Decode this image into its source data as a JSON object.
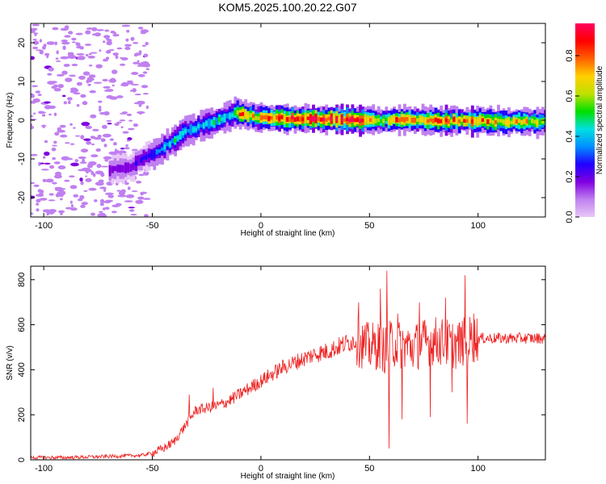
{
  "figure": {
    "title": "KOM5.2025.100.20.22.G07"
  },
  "chart_data": [
    {
      "type": "heatmap",
      "xlabel": "Height of straight line (km)",
      "ylabel": "Frequency (Hz)",
      "xlim": [
        -106,
        131
      ],
      "ylim": [
        -25,
        25
      ],
      "xticks": [
        -100,
        -50,
        0,
        50,
        100
      ],
      "yticks": [
        -20,
        -10,
        0,
        10,
        20
      ],
      "grid": false,
      "colorbar": {
        "label": "Normalized spectral amplitude",
        "range": [
          0,
          0.96
        ],
        "ticks": [
          "0.0",
          "0.2",
          "0.4",
          "0.6",
          "0.8"
        ],
        "tick_values": [
          0.0,
          0.2,
          0.4,
          0.6,
          0.8
        ],
        "colors": [
          "#e8c8f8",
          "#c080f0",
          "#8000e0",
          "#2000ff",
          "#0090ff",
          "#00e0e0",
          "#00e000",
          "#c0e000",
          "#ffd000",
          "#ff6000",
          "#ff0000",
          "#ff0060"
        ]
      },
      "ridge": {
        "x": [
          -70,
          -60,
          -55,
          -50,
          -45,
          -40,
          -35,
          -30,
          -25,
          -20,
          -15,
          -12,
          -10,
          -5,
          0,
          10,
          20,
          30,
          40,
          50,
          55,
          60,
          70,
          80,
          90,
          100,
          110,
          120,
          131
        ],
        "frequency": [
          -13,
          -12,
          -10,
          -9,
          -7,
          -5,
          -3,
          -2,
          -1,
          0,
          1,
          2,
          1.5,
          1,
          0.5,
          0.5,
          0.3,
          0.2,
          0,
          0,
          -0.2,
          0.2,
          0,
          -0.2,
          0,
          -0.2,
          -0.3,
          -0.4,
          -0.5
        ],
        "amplitude": [
          0.15,
          0.2,
          0.25,
          0.35,
          0.45,
          0.45,
          0.45,
          0.4,
          0.45,
          0.5,
          0.4,
          0.55,
          0.8,
          0.75,
          0.8,
          0.85,
          0.9,
          0.95,
          0.9,
          0.85,
          0.55,
          0.8,
          0.75,
          0.85,
          0.8,
          0.85,
          0.75,
          0.75,
          0.6
        ]
      },
      "noise_region_x": [
        -106,
        -52
      ],
      "noise_level": 0.08
    },
    {
      "type": "line",
      "xlabel": "Height of straight line (km)",
      "ylabel": "SNR (v/v)",
      "xlim": [
        -106,
        131
      ],
      "ylim": [
        0,
        860
      ],
      "xticks": [
        -100,
        -50,
        0,
        50,
        100
      ],
      "yticks": [
        0,
        200,
        400,
        600,
        800
      ],
      "grid": false,
      "color": "#ee2020",
      "series": [
        {
          "x": [
            -106,
            -90,
            -70,
            -55,
            -50,
            -45,
            -40,
            -35,
            -30,
            -25,
            -20,
            -15,
            -10,
            -5,
            0,
            5,
            10,
            15,
            20,
            25,
            30,
            35,
            40,
            44,
            45,
            50,
            55,
            58,
            60,
            65,
            70,
            75,
            80,
            85,
            90,
            95,
            100,
            110,
            120,
            131
          ],
          "y": [
            10,
            10,
            15,
            20,
            30,
            50,
            80,
            150,
            220,
            230,
            240,
            260,
            290,
            320,
            350,
            380,
            410,
            430,
            450,
            470,
            480,
            500,
            520,
            530,
            520,
            500,
            510,
            480,
            520,
            510,
            500,
            520,
            530,
            520,
            510,
            530,
            540,
            540,
            540,
            540
          ]
        }
      ],
      "extremes": [
        {
          "x": -33,
          "y": 290
        },
        {
          "x": -22,
          "y": 320
        },
        {
          "x": 45,
          "y": 700
        },
        {
          "x": 55,
          "y": 760
        },
        {
          "x": 58,
          "y": 840
        },
        {
          "x": 59,
          "y": 50
        },
        {
          "x": 63,
          "y": 650
        },
        {
          "x": 65,
          "y": 180
        },
        {
          "x": 73,
          "y": 700
        },
        {
          "x": 78,
          "y": 190
        },
        {
          "x": 85,
          "y": 720
        },
        {
          "x": 88,
          "y": 300
        },
        {
          "x": 94,
          "y": 820
        },
        {
          "x": 95,
          "y": 160
        },
        {
          "x": 98,
          "y": 650
        }
      ]
    }
  ]
}
